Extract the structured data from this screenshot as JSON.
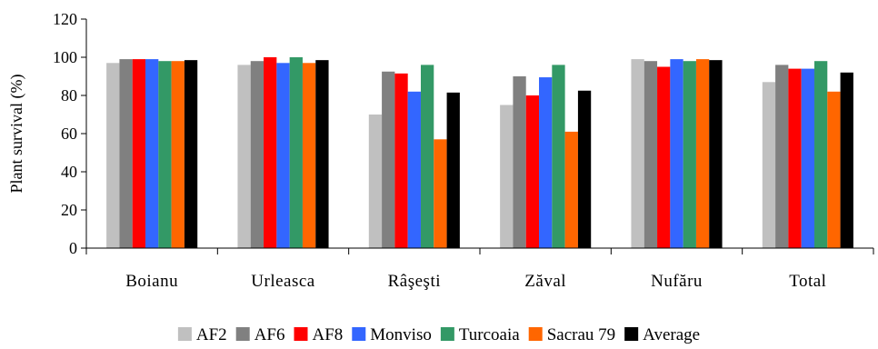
{
  "chart_data": {
    "type": "bar",
    "title": "",
    "xlabel": "",
    "ylabel": "Plant survival (%)",
    "ylim": [
      0,
      120
    ],
    "yticks": [
      0,
      20,
      40,
      60,
      80,
      100,
      120
    ],
    "grid": false,
    "legend_position": "bottom",
    "categories": [
      "Boianu",
      "Urleasca",
      "Râşeşti",
      "Zăval",
      "Nufăru",
      "Total"
    ],
    "series": [
      {
        "name": "AF2",
        "color": "#c0c0c0",
        "values": [
          97,
          96,
          70,
          75,
          99,
          87
        ]
      },
      {
        "name": "AF6",
        "color": "#808080",
        "values": [
          99,
          98,
          92.5,
          90,
          98,
          96
        ]
      },
      {
        "name": "AF8",
        "color": "#ff0000",
        "values": [
          99,
          100,
          91.5,
          80,
          95,
          94
        ]
      },
      {
        "name": "Monviso",
        "color": "#3366ff",
        "values": [
          99,
          97,
          82,
          89.5,
          99,
          94
        ]
      },
      {
        "name": "Turcoaia",
        "color": "#339966",
        "values": [
          98,
          100,
          96,
          96,
          98,
          98
        ]
      },
      {
        "name": "Sacrau 79",
        "color": "#ff6600",
        "values": [
          98,
          97,
          57,
          61,
          99,
          82
        ]
      },
      {
        "name": "Average",
        "color": "#000000",
        "values": [
          98.5,
          98.5,
          81.5,
          82.5,
          98.5,
          92
        ]
      }
    ]
  }
}
